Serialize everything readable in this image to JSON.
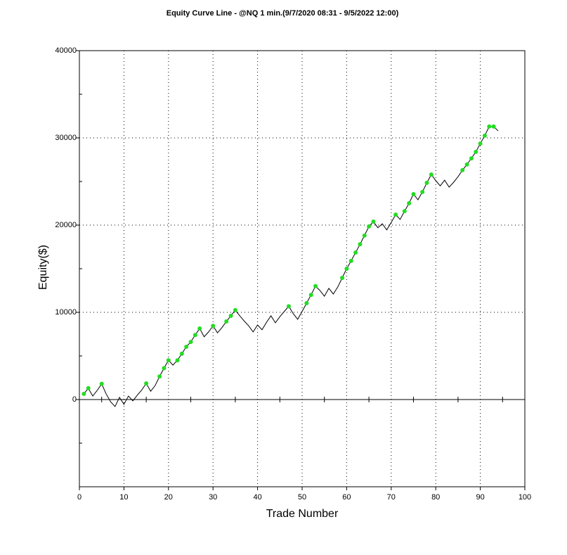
{
  "chart_data": {
    "type": "line",
    "title": "Equity Curve Line - @NQ 1 min.(9/7/2020 08:31 - 9/5/2022 12:00)",
    "x_label": "Trade Number",
    "y_label": "Equity($)",
    "x": [
      1,
      2,
      3,
      4,
      5,
      6,
      7,
      8,
      9,
      10,
      11,
      12,
      13,
      14,
      15,
      16,
      17,
      18,
      19,
      20,
      21,
      22,
      23,
      24,
      25,
      26,
      27,
      28,
      29,
      30,
      31,
      32,
      33,
      34,
      35,
      36,
      37,
      38,
      39,
      40,
      41,
      42,
      43,
      44,
      45,
      46,
      47,
      48,
      49,
      50,
      51,
      52,
      53,
      54,
      55,
      56,
      57,
      58,
      59,
      60,
      61,
      62,
      63,
      64,
      65,
      66,
      67,
      68,
      69,
      70,
      71,
      72,
      73,
      74,
      75,
      76,
      77,
      78,
      79,
      80,
      81,
      82,
      83,
      84,
      85,
      86,
      87,
      88,
      89,
      90,
      91,
      92,
      93,
      94
    ],
    "series": [
      {
        "color": "#000000",
        "values": [
          650,
          1300,
          400,
          1050,
          1800,
          650,
          -250,
          -800,
          250,
          -550,
          400,
          -150,
          500,
          1100,
          1850,
          950,
          1600,
          2650,
          3600,
          4500,
          3950,
          4500,
          5250,
          6050,
          6600,
          7400,
          8150,
          7200,
          7750,
          8450,
          7650,
          8250,
          8950,
          9600,
          10250,
          9600,
          9000,
          8450,
          7750,
          8550,
          8000,
          8850,
          9600,
          8800,
          9500,
          10100,
          10700,
          9850,
          9200,
          10100,
          11050,
          12000,
          13000,
          12500,
          11850,
          12750,
          12100,
          12900,
          13950,
          15000,
          15900,
          16850,
          17800,
          18800,
          19850,
          20400,
          19700,
          20150,
          19450,
          20300,
          21200,
          20650,
          21600,
          22500,
          23550,
          22900,
          23800,
          24850,
          25800,
          25100,
          24500,
          25150,
          24350,
          24900,
          25550,
          26300,
          26950,
          27650,
          28400,
          29350,
          30250,
          31300,
          31300,
          30800
        ]
      },
      {
        "color": "#22dd22",
        "marker": true,
        "values": [
          650,
          1300,
          null,
          null,
          1800,
          null,
          null,
          null,
          null,
          null,
          null,
          null,
          null,
          null,
          1850,
          null,
          null,
          2650,
          3600,
          4500,
          null,
          4500,
          5250,
          6050,
          6600,
          7400,
          8150,
          null,
          null,
          8450,
          null,
          null,
          8950,
          9600,
          10250,
          null,
          null,
          null,
          null,
          null,
          null,
          null,
          null,
          null,
          null,
          null,
          10700,
          null,
          null,
          null,
          11050,
          12000,
          13000,
          null,
          null,
          null,
          null,
          null,
          13950,
          15000,
          15900,
          16850,
          17800,
          18800,
          19850,
          20400,
          null,
          null,
          null,
          null,
          21200,
          null,
          21600,
          22500,
          23550,
          null,
          23800,
          24850,
          25800,
          null,
          null,
          null,
          null,
          null,
          null,
          26300,
          26950,
          27650,
          28400,
          29350,
          30250,
          31300,
          31300,
          null
        ]
      }
    ],
    "xlim": [
      0,
      100
    ],
    "xticks": [
      0,
      10,
      20,
      30,
      40,
      50,
      60,
      70,
      80,
      90,
      100
    ],
    "ylim": [
      -10000,
      40000
    ],
    "yticks": [
      0,
      10000,
      20000,
      30000,
      40000
    ],
    "grid": true
  }
}
